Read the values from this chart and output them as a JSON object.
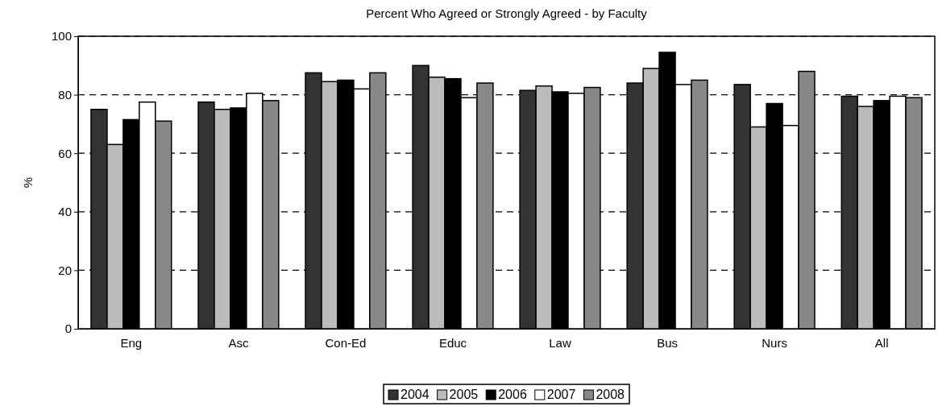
{
  "chart_data": {
    "type": "bar",
    "title": "Percent Who Agreed or Strongly Agreed - by Faculty",
    "ylabel": "%",
    "categories": [
      "Eng",
      "Asc",
      "Con-Ed",
      "Educ",
      "Law",
      "Bus",
      "Nurs",
      "All"
    ],
    "series": [
      {
        "name": "2004",
        "color": "#333333",
        "values": [
          75,
          77.5,
          87.5,
          90,
          81.5,
          84,
          83.5,
          79.5
        ]
      },
      {
        "name": "2005",
        "color": "#bbbbbb",
        "values": [
          63,
          75,
          84.5,
          86,
          83,
          89,
          69,
          76
        ]
      },
      {
        "name": "2006",
        "color": "#000000",
        "values": [
          71.5,
          75.5,
          85,
          85.5,
          81,
          94.5,
          77,
          78
        ]
      },
      {
        "name": "2007",
        "color": "#ffffff",
        "values": [
          77.5,
          80.5,
          82,
          79,
          80.5,
          83.5,
          69.5,
          79.5
        ]
      },
      {
        "name": "2008",
        "color": "#888888",
        "values": [
          71,
          78,
          87.5,
          84,
          82.5,
          85,
          88,
          79
        ]
      }
    ],
    "ylim": [
      0,
      100
    ],
    "yticks": [
      0,
      20,
      40,
      60,
      80,
      100
    ],
    "grid": "y",
    "line_style": "dashed",
    "legend": "bottom"
  }
}
